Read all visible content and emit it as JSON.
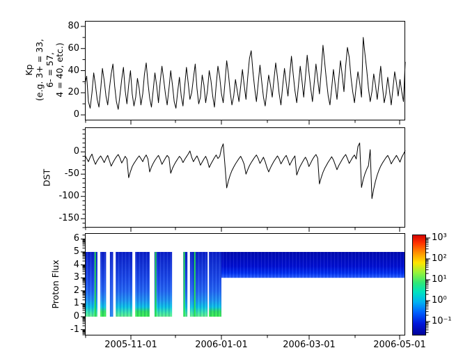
{
  "figure_type": "multi-panel space weather time series, 2005-10 to 2006-05",
  "x_axis": {
    "major_ticks": [
      {
        "label": "2005-11-01",
        "f": 0.1435
      },
      {
        "label": "2006-01-01",
        "f": 0.4261
      },
      {
        "label": "2006-03-01",
        "f": 0.7
      },
      {
        "label": "2006-05-01",
        "f": 0.9826
      }
    ],
    "minor_tick_fs": [
      0.002,
      0.2826,
      0.5696,
      0.8435
    ]
  },
  "chart_data": [
    {
      "type": "line",
      "series_name": "Kp",
      "ylabel": "Kp\n(e.g. 3+ = 33,\n6- = 57,\n4 = 40, etc.)",
      "ylim": [
        -5,
        85
      ],
      "yticks": [
        0,
        20,
        40,
        60,
        80
      ],
      "y_minor_step": 10,
      "line_color": "#000000",
      "values": [
        28,
        35,
        12,
        6,
        20,
        38,
        27,
        14,
        7,
        23,
        42,
        31,
        17,
        9,
        24,
        37,
        46,
        26,
        12,
        5,
        18,
        32,
        43,
        22,
        10,
        27,
        40,
        19,
        8,
        16,
        33,
        24,
        9,
        19,
        37,
        47,
        29,
        15,
        7,
        22,
        38,
        26,
        11,
        30,
        44,
        32,
        19,
        9,
        24,
        40,
        27,
        12,
        6,
        21,
        34,
        17,
        8,
        26,
        43,
        29,
        14,
        20,
        33,
        46,
        24,
        10,
        16,
        36,
        27,
        11,
        22,
        40,
        31,
        17,
        7,
        27,
        44,
        34,
        19,
        11,
        29,
        49,
        37,
        21,
        9,
        17,
        32,
        22,
        12,
        26,
        41,
        27,
        14,
        34,
        51,
        58,
        39,
        24,
        12,
        29,
        45,
        30,
        16,
        8,
        22,
        36,
        27,
        16,
        32,
        47,
        34,
        19,
        9,
        26,
        42,
        29,
        17,
        36,
        53,
        37,
        22,
        11,
        27,
        44,
        31,
        16,
        34,
        54,
        39,
        24,
        12,
        29,
        46,
        32,
        19,
        39,
        63,
        47,
        31,
        17,
        9,
        24,
        41,
        27,
        14,
        32,
        49,
        36,
        21,
        44,
        61,
        52,
        34,
        21,
        11,
        26,
        39,
        29,
        16,
        70,
        55,
        41,
        24,
        12,
        21,
        37,
        27,
        14,
        29,
        44,
        26,
        11,
        19,
        34,
        22,
        9,
        24,
        39,
        29,
        17,
        32,
        21,
        12,
        48
      ]
    },
    {
      "type": "line",
      "series_name": "DST",
      "ylabel": "DST",
      "ylim": [
        -170,
        55
      ],
      "yticks": [
        0,
        -50,
        -100,
        -150
      ],
      "y_minor_step": 10,
      "line_color": "#000000",
      "values": [
        -8,
        -15,
        -22,
        -12,
        -5,
        -18,
        -28,
        -20,
        -14,
        -9,
        -16,
        -24,
        -15,
        -8,
        -20,
        -32,
        -24,
        -17,
        -11,
        -6,
        -14,
        -25,
        -18,
        -10,
        -16,
        -58,
        -44,
        -33,
        -26,
        -20,
        -14,
        -9,
        -15,
        -22,
        -13,
        -7,
        -16,
        -45,
        -34,
        -26,
        -19,
        -13,
        -8,
        -17,
        -28,
        -21,
        -14,
        -8,
        -13,
        -48,
        -37,
        -29,
        -22,
        -16,
        -10,
        -15,
        -24,
        -17,
        -11,
        -5,
        2,
        -12,
        -22,
        -15,
        -9,
        -18,
        -30,
        -23,
        -16,
        -10,
        -20,
        -35,
        -27,
        -20,
        -13,
        -7,
        -15,
        -10,
        8,
        18,
        -30,
        -81,
        -65,
        -52,
        -42,
        -34,
        -27,
        -21,
        -15,
        -10,
        -18,
        -28,
        -50,
        -40,
        -31,
        -24,
        -18,
        -12,
        -7,
        -15,
        -26,
        -19,
        -12,
        -22,
        -35,
        -45,
        -36,
        -28,
        -21,
        -15,
        -9,
        -16,
        -27,
        -20,
        -13,
        -8,
        -18,
        -30,
        -22,
        -15,
        -9,
        -52,
        -41,
        -32,
        -25,
        -18,
        -12,
        -20,
        -33,
        -25,
        -17,
        -11,
        -6,
        -14,
        -72,
        -58,
        -46,
        -37,
        -30,
        -23,
        -17,
        -11,
        -18,
        -29,
        -40,
        -31,
        -24,
        -17,
        -11,
        -6,
        -15,
        -26,
        -19,
        -12,
        -7,
        -16,
        12,
        20,
        -80,
        -62,
        -49,
        -39,
        -31,
        5,
        -105,
        -83,
        -66,
        -52,
        -41,
        -32,
        -25,
        -19,
        -13,
        -8,
        -16,
        -27,
        -20,
        -14,
        -8,
        -15,
        -23,
        -12,
        -5,
        3
      ]
    },
    {
      "type": "heatmap",
      "series_name": "Proton Flux",
      "ylabel": "Proton Flux",
      "ylim": [
        -1.45,
        6.45
      ],
      "yticks": [
        6,
        5,
        4,
        3,
        2,
        1,
        0,
        -1
      ],
      "y_minor": "log-decade",
      "segments": [
        {
          "x0": 0.0,
          "x1": 0.039,
          "y0": 0,
          "y1": 5,
          "bottom": "cyan"
        },
        {
          "x0": 0.048,
          "x1": 0.066,
          "y0": 0,
          "y1": 5,
          "bottom": "green"
        },
        {
          "x0": 0.078,
          "x1": 0.088,
          "y0": 0,
          "y1": 5,
          "bottom": "plain"
        },
        {
          "x0": 0.096,
          "x1": 0.148,
          "y0": 0,
          "y1": 5,
          "bottom": "cyan"
        },
        {
          "x0": 0.157,
          "x1": 0.202,
          "y0": 0,
          "y1": 5,
          "bottom": "green"
        },
        {
          "x0": 0.217,
          "x1": 0.272,
          "y0": 0,
          "y1": 5,
          "bottom": "cyan"
        },
        {
          "x0": 0.307,
          "x1": 0.32,
          "y0": 0,
          "y1": 5,
          "bottom": "cyan"
        },
        {
          "x0": 0.328,
          "x1": 0.383,
          "y0": 0,
          "y1": 5,
          "bottom": "cyan"
        },
        {
          "x0": 0.387,
          "x1": 0.426,
          "y0": 0,
          "y1": 5,
          "bottom": "green"
        }
      ],
      "band": {
        "x0": 0.426,
        "x1": 1.0,
        "y0": 3,
        "y1": 5
      },
      "green_line_fs": [
        0.03,
        0.219,
        0.308,
        0.341
      ],
      "palette": {
        "deep_blue": "#0a1fc8",
        "mid_blue": "#2366f2",
        "cyan": "#0ac4e6",
        "green": "#2ee060",
        "band_dark": "#0009b0",
        "band_bright": "#2e64ff",
        "green_line": "#25e348"
      },
      "colorbar": {
        "scale": "log",
        "colormap": "jet",
        "tick_labels": [
          "10³",
          "10²",
          "10¹",
          "10⁰",
          "10⁻¹"
        ],
        "tick_fs": [
          0.034,
          0.241,
          0.448,
          0.655,
          0.862
        ],
        "stops": [
          [
            0.0,
            "#cf0000"
          ],
          [
            0.08,
            "#ff2e00"
          ],
          [
            0.18,
            "#ff9000"
          ],
          [
            0.28,
            "#ffe400"
          ],
          [
            0.38,
            "#93f23c"
          ],
          [
            0.48,
            "#2ee878"
          ],
          [
            0.57,
            "#00e2c0"
          ],
          [
            0.67,
            "#00b2f2"
          ],
          [
            0.77,
            "#0062ff"
          ],
          [
            0.88,
            "#0018dc"
          ],
          [
            1.0,
            "#000096"
          ]
        ]
      }
    }
  ]
}
